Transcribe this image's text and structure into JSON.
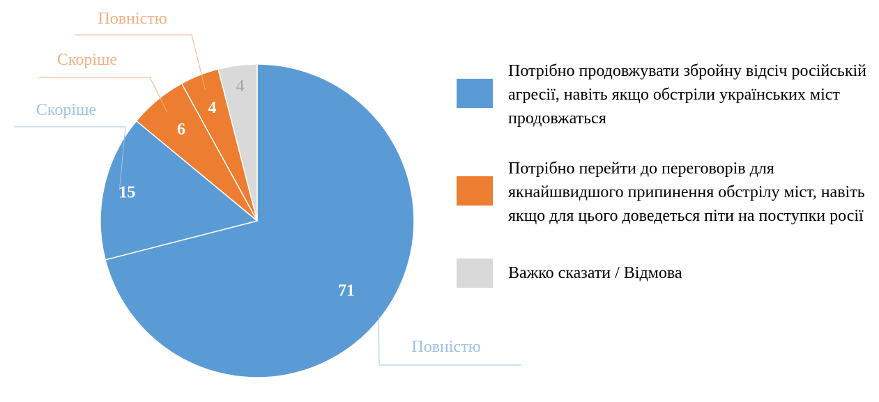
{
  "chart_data": {
    "type": "pie",
    "values": [
      71,
      15,
      6,
      4,
      4
    ],
    "colors": [
      "#5b9bd5",
      "#5b9bd5",
      "#ed7d31",
      "#ed7d31",
      "#d9d9d9"
    ],
    "slice_labels": [
      "71",
      "15",
      "6",
      "4",
      "4"
    ],
    "label_colors": [
      "#ffffff",
      "#ffffff",
      "#ffffff",
      "#ffffff",
      "#a6a6a6"
    ],
    "callouts": [
      {
        "slice": 0,
        "text": "Повністю",
        "color": "#9dc3e6"
      },
      {
        "slice": 1,
        "text": "Скоріше",
        "color": "#9dc3e6"
      },
      {
        "slice": 2,
        "text": "Скоріше",
        "color": "#f4b183"
      },
      {
        "slice": 3,
        "text": "Повністю",
        "color": "#f4b183"
      }
    ],
    "legend": [
      {
        "label": "Потрібно продовжувати збройну відсіч російській агресії, навіть якщо обстріли українських міст продовжаться",
        "color": "#5b9bd5"
      },
      {
        "label": "Потрібно перейти до переговорів для якнайшвидшого припинення обстрілу міст, навіть якщо для цього доведеться піти на поступки росії",
        "color": "#ed7d31"
      },
      {
        "label": "Важко сказати / Відмова",
        "color": "#d9d9d9"
      }
    ],
    "legend_position": "right"
  }
}
